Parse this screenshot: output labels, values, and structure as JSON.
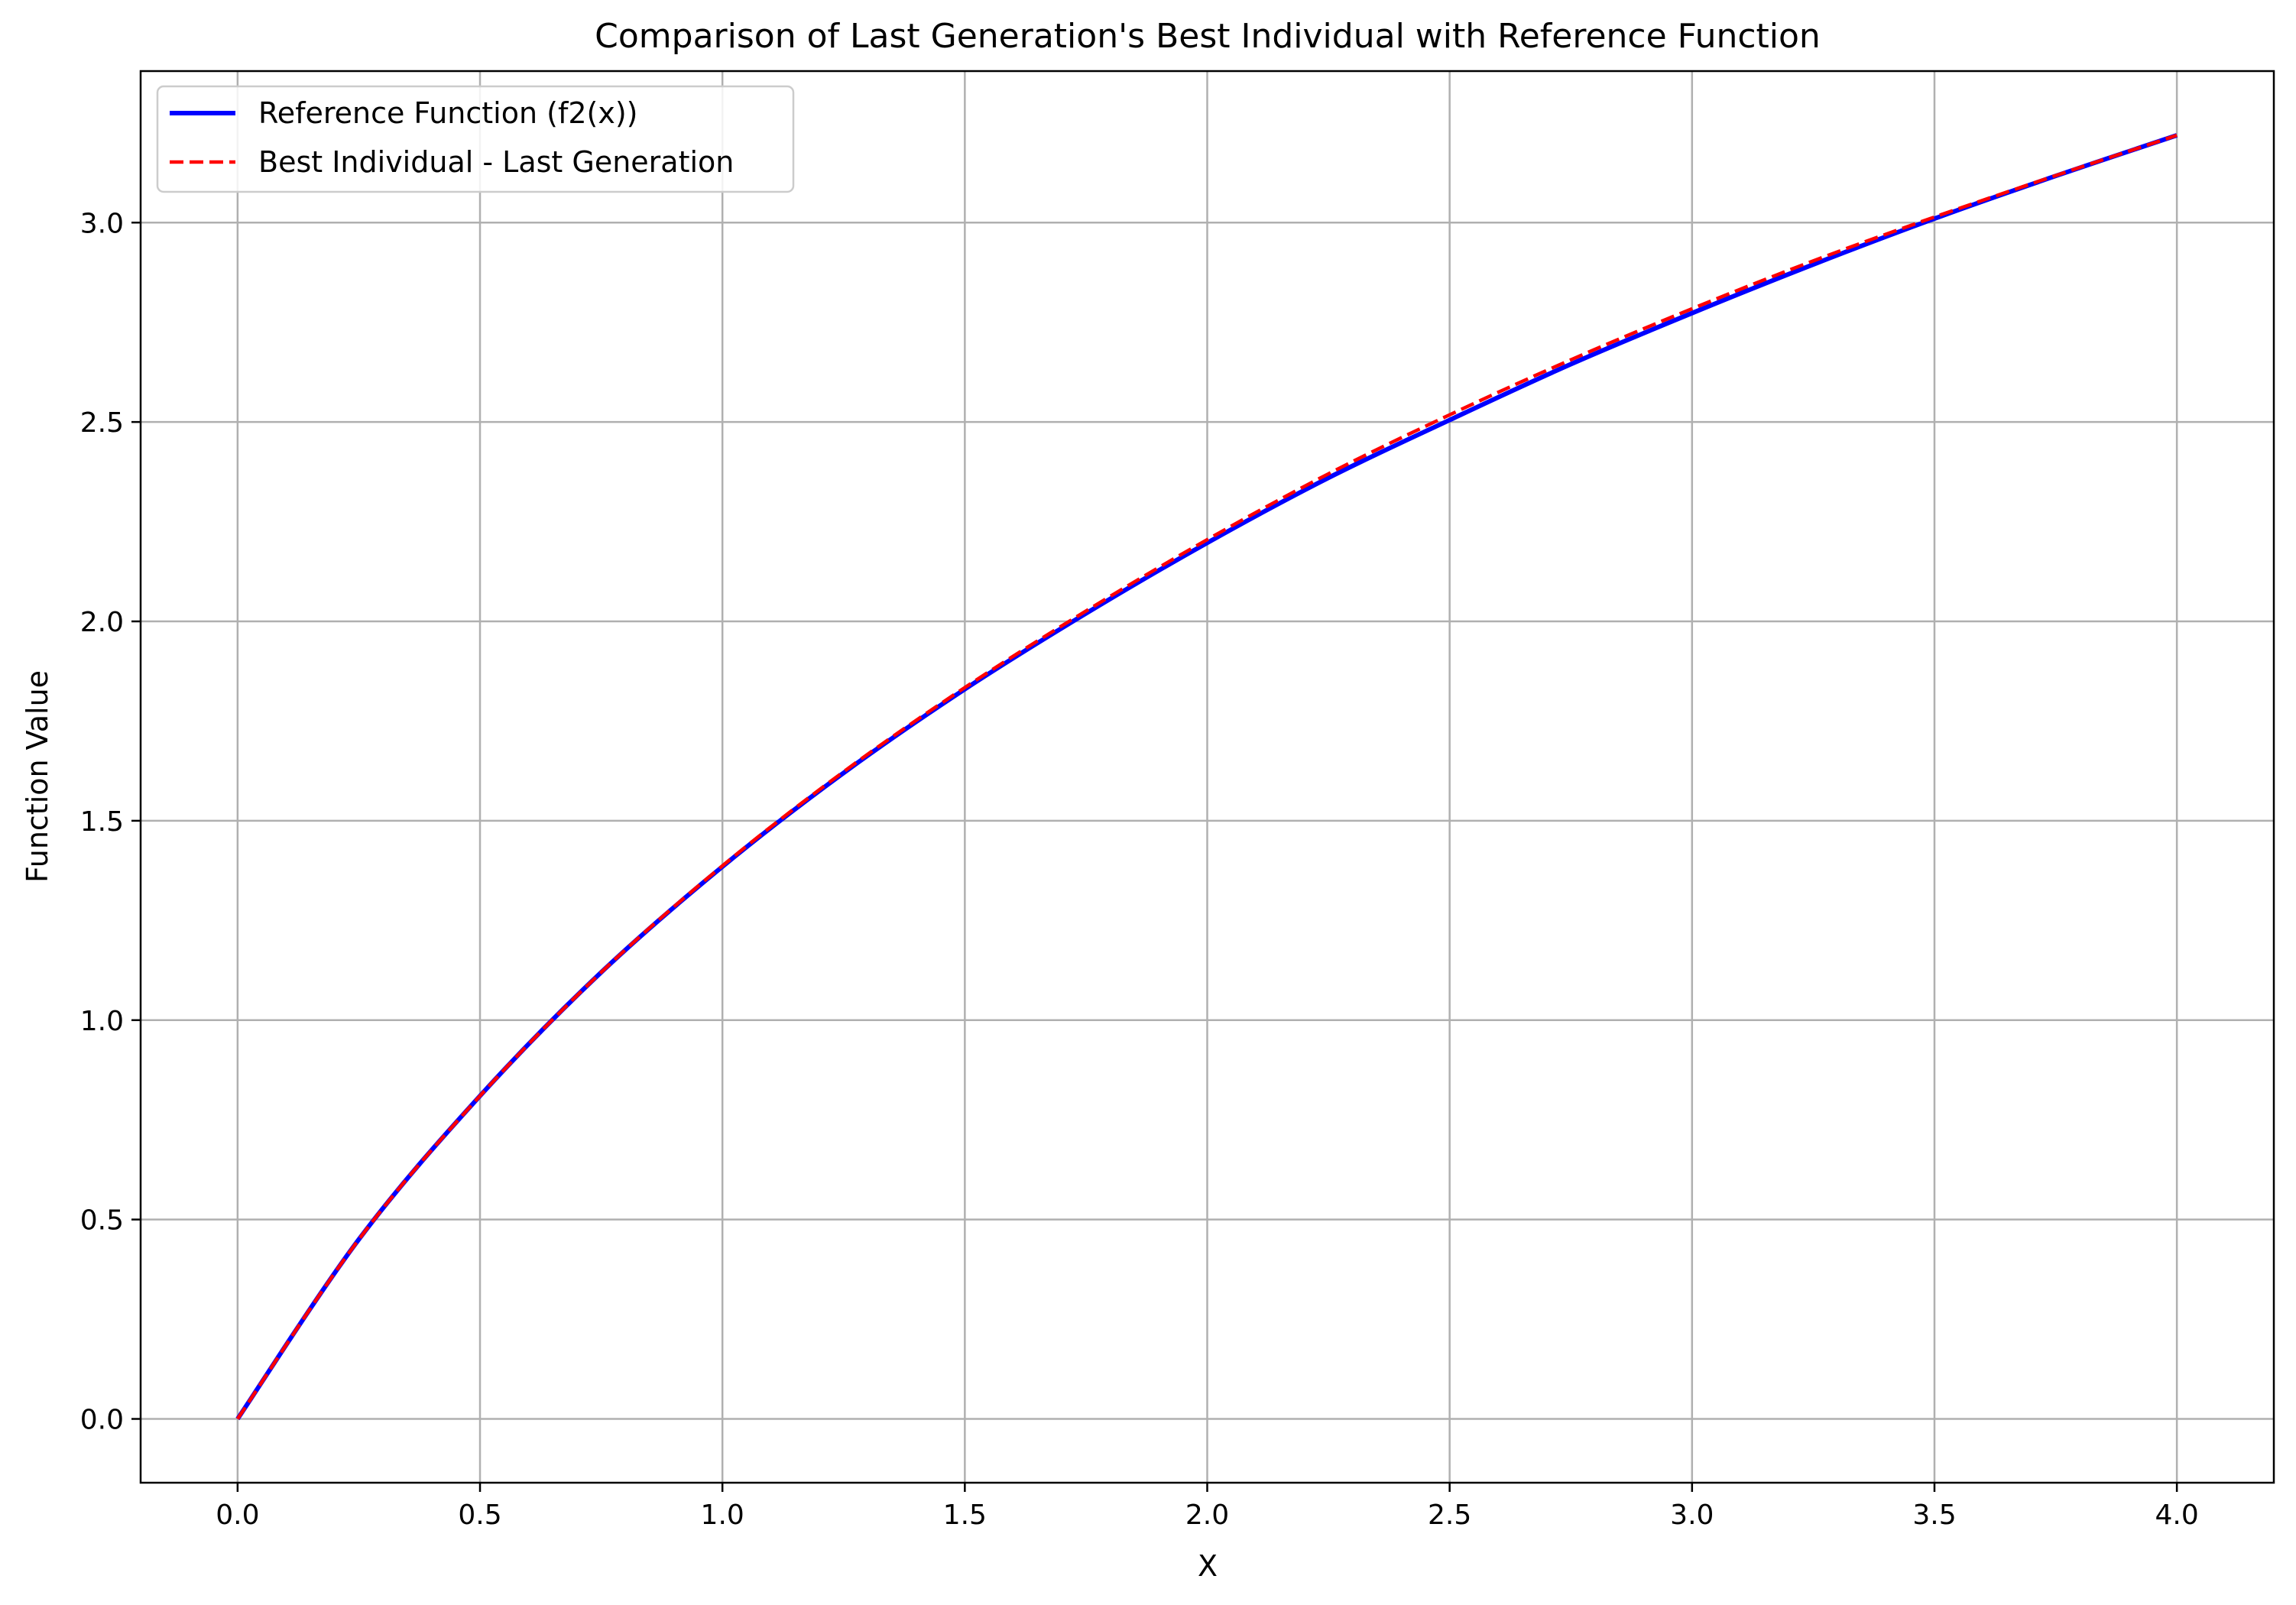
{
  "chart_data": {
    "type": "line",
    "title": "Comparison of Last Generation's Best Individual with Reference Function",
    "xlabel": "X",
    "ylabel": "Function Value",
    "xlim": [
      -0.2,
      4.2
    ],
    "ylim": [
      -0.16,
      3.38
    ],
    "xticks": [
      0.0,
      0.5,
      1.0,
      1.5,
      2.0,
      2.5,
      3.0,
      3.5,
      4.0
    ],
    "yticks": [
      0.0,
      0.5,
      1.0,
      1.5,
      2.0,
      2.5,
      3.0
    ],
    "xtick_labels": [
      "0.0",
      "0.5",
      "1.0",
      "1.5",
      "2.0",
      "2.5",
      "3.0",
      "3.5",
      "4.0"
    ],
    "ytick_labels": [
      "0.0",
      "0.5",
      "1.0",
      "1.5",
      "2.0",
      "2.5",
      "3.0"
    ],
    "grid": true,
    "legend_position": "top-left",
    "series": [
      {
        "name": "Reference Function (f2(x))",
        "color": "#0000ff",
        "style": "solid",
        "x": [
          0.0,
          0.25,
          0.5,
          0.75,
          1.0,
          1.25,
          1.5,
          1.75,
          2.0,
          2.25,
          2.5,
          2.75,
          3.0,
          3.25,
          3.5,
          3.75,
          4.0
        ],
        "y": [
          0.0,
          0.45,
          0.81,
          1.12,
          1.385,
          1.62,
          1.83,
          2.02,
          2.197,
          2.36,
          2.505,
          2.645,
          2.773,
          2.895,
          3.01,
          3.117,
          3.219
        ]
      },
      {
        "name": "Best Individual - Last Generation",
        "color": "#ff0000",
        "style": "dashed",
        "x": [
          0.0,
          0.25,
          0.5,
          0.75,
          1.0,
          1.25,
          1.5,
          1.75,
          2.0,
          2.25,
          2.5,
          2.75,
          3.0,
          3.25,
          3.5,
          3.75,
          4.0
        ],
        "y": [
          0.0,
          0.45,
          0.81,
          1.12,
          1.387,
          1.623,
          1.834,
          2.026,
          2.205,
          2.37,
          2.518,
          2.656,
          2.784,
          2.904,
          3.014,
          3.118,
          3.219
        ]
      }
    ]
  }
}
